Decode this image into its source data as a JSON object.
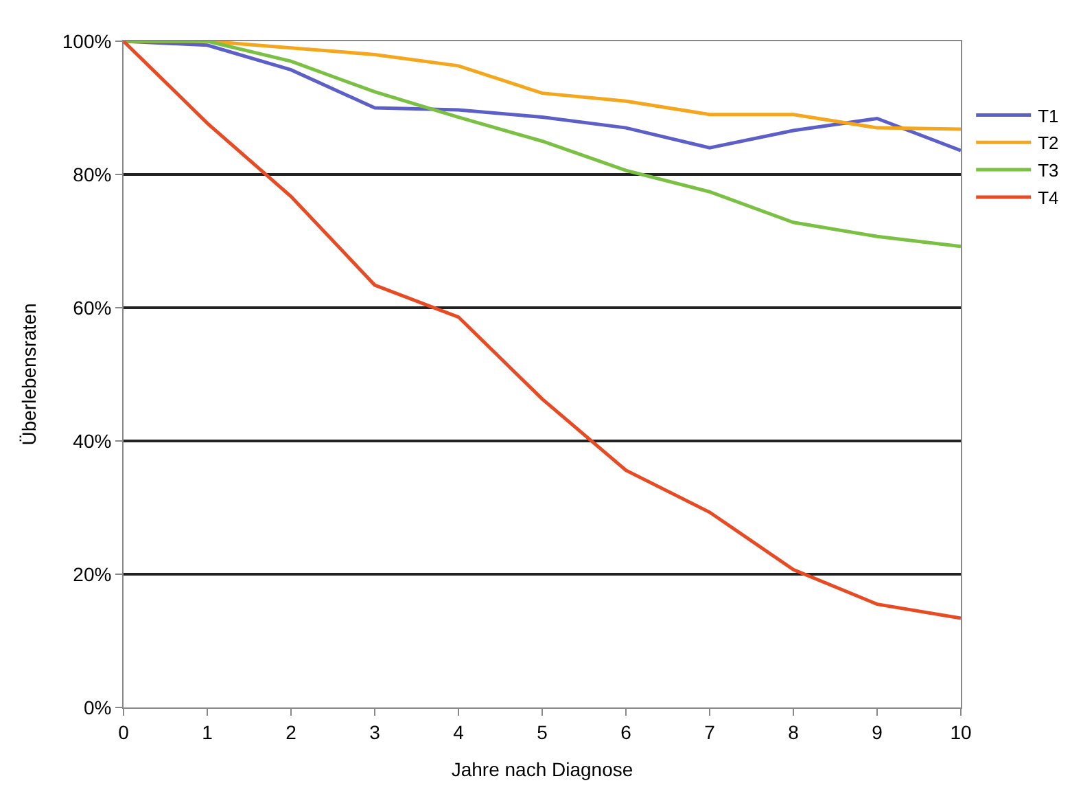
{
  "chart_data": {
    "type": "line",
    "xlabel": "Jahre nach Diagnose",
    "ylabel": "Überlebensraten",
    "x": [
      0,
      1,
      2,
      3,
      4,
      5,
      6,
      7,
      8,
      9,
      10
    ],
    "series": [
      {
        "name": "T1",
        "color": "#5b5fc7",
        "values": [
          100,
          99.4,
          95.7,
          90,
          89.7,
          88.6,
          87,
          84,
          86.6,
          88.4,
          83.6
        ]
      },
      {
        "name": "T2",
        "color": "#f4a71d",
        "values": [
          100,
          100,
          99,
          98,
          96.3,
          92.2,
          91,
          89,
          89,
          87,
          86.8
        ]
      },
      {
        "name": "T3",
        "color": "#7ac143",
        "values": [
          100,
          100,
          97,
          92.4,
          88.6,
          85,
          80.6,
          77.4,
          72.8,
          70.7,
          69.2
        ]
      },
      {
        "name": "T4",
        "color": "#e84b23",
        "values": [
          100,
          87.7,
          76.7,
          63.4,
          58.6,
          46.3,
          35.6,
          29.3,
          20.7,
          15.5,
          13.4
        ]
      }
    ],
    "xlim": [
      0,
      10
    ],
    "xticks": [
      0,
      1,
      2,
      3,
      4,
      5,
      6,
      7,
      8,
      9,
      10
    ],
    "ylim": [
      0,
      100
    ],
    "yticks": [
      {
        "value": 0,
        "label": "0%"
      },
      {
        "value": 20,
        "label": "20%"
      },
      {
        "value": 40,
        "label": "40%"
      },
      {
        "value": 60,
        "label": "60%"
      },
      {
        "value": 80,
        "label": "80%"
      },
      {
        "value": 100,
        "label": "100%"
      }
    ],
    "grid": "y",
    "legend": "right",
    "marker": "none",
    "line_style": "solid"
  }
}
